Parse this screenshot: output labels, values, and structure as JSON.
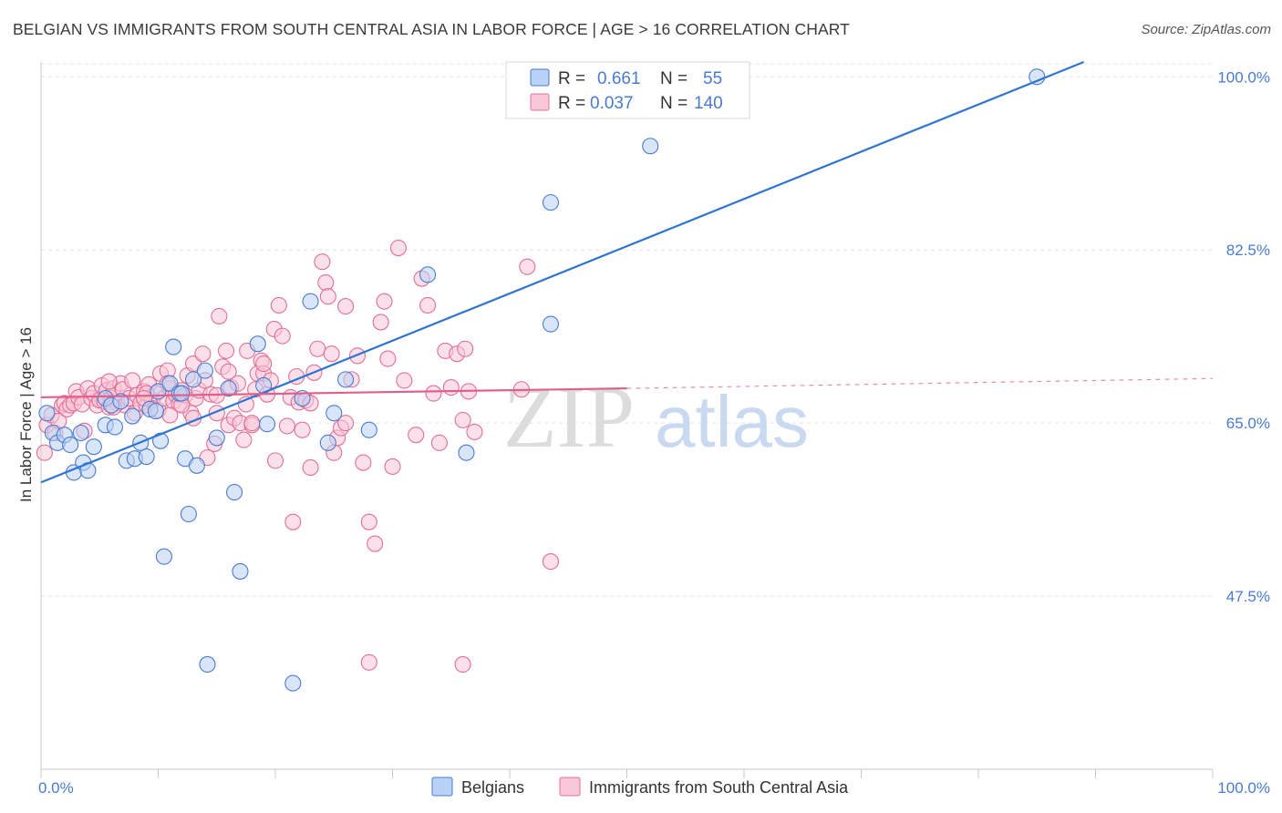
{
  "title": "BELGIAN VS IMMIGRANTS FROM SOUTH CENTRAL ASIA IN LABOR FORCE | AGE > 16 CORRELATION CHART",
  "source": "Source: ZipAtlas.com",
  "watermark": {
    "zip": "ZIP",
    "atlas": "atlas"
  },
  "colors": {
    "blue": "#4a7bd0",
    "blue_fill": "#b9d2f5",
    "blue_line": "#2f75d0",
    "pink": "#e07097",
    "pink_fill": "#f9c7d7",
    "pink_line": "#e0608a",
    "grid": "#e3e3e3",
    "axis": "#c8c8c8"
  },
  "legend_top": [
    {
      "r_label": "R =",
      "r_value": "0.661",
      "n_label": "N =",
      "n_value": "55"
    },
    {
      "r_label": "R =",
      "r_value": "0.037",
      "n_label": "N =",
      "n_value": "140"
    }
  ],
  "chart_data": {
    "type": "scatter",
    "xlabel": "",
    "ylabel": "In Labor Force | Age > 16",
    "xlim": [
      0,
      100
    ],
    "ylim": [
      30,
      101.5
    ],
    "x_tick_labels": [
      "0.0%",
      "100.0%"
    ],
    "y_ticks": [
      47.5,
      65.0,
      82.5,
      100.0
    ],
    "y_tick_labels": [
      "47.5%",
      "65.0%",
      "82.5%",
      "100.0%"
    ],
    "grid": true,
    "legend_position": "bottom-center",
    "series": [
      {
        "name": "Belgians",
        "color": "blue",
        "trend": {
          "x": [
            0,
            89
          ],
          "y": [
            59.0,
            101.5
          ]
        },
        "trend_dashed": null,
        "points": [
          [
            0.5,
            66.0
          ],
          [
            1.0,
            64.0
          ],
          [
            1.4,
            63.0
          ],
          [
            2.0,
            63.8
          ],
          [
            2.5,
            62.8
          ],
          [
            2.8,
            60.0
          ],
          [
            3.4,
            64.0
          ],
          [
            3.6,
            61.0
          ],
          [
            4.0,
            60.2
          ],
          [
            4.5,
            62.6
          ],
          [
            5.5,
            67.5
          ],
          [
            5.5,
            64.8
          ],
          [
            6.0,
            66.8
          ],
          [
            6.3,
            64.6
          ],
          [
            6.8,
            67.2
          ],
          [
            7.3,
            61.2
          ],
          [
            7.8,
            65.7
          ],
          [
            8.0,
            61.4
          ],
          [
            8.5,
            63.0
          ],
          [
            9.0,
            61.6
          ],
          [
            9.3,
            66.4
          ],
          [
            9.8,
            66.2
          ],
          [
            10.0,
            68.2
          ],
          [
            10.2,
            63.2
          ],
          [
            10.5,
            51.5
          ],
          [
            11.0,
            69.0
          ],
          [
            11.3,
            72.7
          ],
          [
            11.8,
            68.0
          ],
          [
            12.0,
            68.0
          ],
          [
            12.3,
            61.4
          ],
          [
            12.6,
            55.8
          ],
          [
            13.0,
            69.4
          ],
          [
            13.3,
            60.7
          ],
          [
            14.0,
            70.3
          ],
          [
            14.2,
            40.6
          ],
          [
            15.0,
            63.5
          ],
          [
            16.0,
            68.5
          ],
          [
            16.5,
            58.0
          ],
          [
            17.0,
            50.0
          ],
          [
            18.5,
            73.0
          ],
          [
            19.0,
            68.8
          ],
          [
            19.3,
            64.9
          ],
          [
            21.5,
            38.7
          ],
          [
            22.3,
            67.5
          ],
          [
            23.0,
            77.3
          ],
          [
            24.5,
            63.0
          ],
          [
            25.0,
            66.0
          ],
          [
            26.0,
            69.4
          ],
          [
            28.0,
            64.3
          ],
          [
            33.0,
            80.0
          ],
          [
            36.3,
            62.0
          ],
          [
            43.5,
            87.3
          ],
          [
            43.5,
            75.0
          ],
          [
            52.0,
            93.0
          ],
          [
            85.0,
            100.0
          ]
        ]
      },
      {
        "name": "Immigrants from South Central Asia",
        "color": "pink",
        "trend": {
          "x": [
            0,
            50
          ],
          "y": [
            67.6,
            68.5
          ]
        },
        "trend_dashed": {
          "x": [
            50,
            100
          ],
          "y": [
            68.5,
            69.5
          ]
        },
        "points": [
          [
            0.3,
            62.0
          ],
          [
            0.5,
            64.8
          ],
          [
            0.9,
            65.8
          ],
          [
            1.2,
            64.0
          ],
          [
            1.5,
            65.2
          ],
          [
            1.8,
            66.8
          ],
          [
            2.0,
            67.0
          ],
          [
            2.2,
            66.4
          ],
          [
            2.5,
            66.8
          ],
          [
            2.8,
            67.0
          ],
          [
            3.0,
            68.2
          ],
          [
            3.2,
            67.6
          ],
          [
            3.5,
            66.9
          ],
          [
            3.7,
            64.2
          ],
          [
            4.0,
            68.5
          ],
          [
            4.3,
            67.5
          ],
          [
            4.5,
            68.0
          ],
          [
            4.8,
            66.8
          ],
          [
            5.0,
            67.3
          ],
          [
            5.2,
            68.8
          ],
          [
            5.4,
            67.2
          ],
          [
            5.6,
            68.3
          ],
          [
            5.8,
            66.6
          ],
          [
            6.0,
            67.5
          ],
          [
            6.2,
            68.5
          ],
          [
            6.5,
            67.0
          ],
          [
            6.8,
            69.0
          ],
          [
            7.0,
            68.4
          ],
          [
            7.2,
            66.8
          ],
          [
            7.5,
            67.5
          ],
          [
            7.8,
            69.3
          ],
          [
            8.0,
            66.0
          ],
          [
            8.2,
            67.8
          ],
          [
            8.5,
            67.0
          ],
          [
            8.8,
            68.2
          ],
          [
            9.0,
            66.8
          ],
          [
            9.2,
            68.9
          ],
          [
            9.5,
            67.3
          ],
          [
            9.8,
            68.0
          ],
          [
            10.0,
            66.3
          ],
          [
            10.2,
            70.0
          ],
          [
            10.5,
            67.5
          ],
          [
            10.8,
            70.3
          ],
          [
            11.0,
            68.5
          ],
          [
            11.3,
            67.2
          ],
          [
            11.5,
            67.9
          ],
          [
            11.8,
            66.9
          ],
          [
            12.0,
            68.3
          ],
          [
            12.3,
            67.8
          ],
          [
            12.5,
            69.8
          ],
          [
            12.8,
            66.0
          ],
          [
            13.0,
            71.0
          ],
          [
            13.2,
            67.5
          ],
          [
            13.5,
            68.3
          ],
          [
            13.8,
            72.0
          ],
          [
            14.0,
            69.3
          ],
          [
            14.2,
            61.5
          ],
          [
            14.5,
            67.9
          ],
          [
            14.8,
            62.9
          ],
          [
            15.0,
            66.0
          ],
          [
            15.2,
            75.8
          ],
          [
            15.5,
            70.7
          ],
          [
            15.8,
            72.3
          ],
          [
            16.0,
            64.8
          ],
          [
            16.2,
            68.6
          ],
          [
            16.5,
            65.5
          ],
          [
            16.8,
            69.0
          ],
          [
            17.0,
            65.0
          ],
          [
            17.3,
            63.3
          ],
          [
            17.6,
            72.3
          ],
          [
            18.0,
            64.8
          ],
          [
            18.3,
            68.4
          ],
          [
            18.5,
            70.0
          ],
          [
            18.8,
            71.3
          ],
          [
            19.0,
            70.0
          ],
          [
            19.3,
            67.9
          ],
          [
            19.6,
            69.3
          ],
          [
            19.9,
            74.5
          ],
          [
            20.0,
            61.2
          ],
          [
            20.3,
            76.9
          ],
          [
            20.6,
            73.8
          ],
          [
            21.0,
            64.7
          ],
          [
            21.3,
            67.6
          ],
          [
            21.5,
            55.0
          ],
          [
            21.8,
            69.7
          ],
          [
            22.0,
            67.1
          ],
          [
            22.3,
            64.3
          ],
          [
            22.6,
            67.3
          ],
          [
            23.0,
            60.5
          ],
          [
            23.3,
            70.1
          ],
          [
            23.6,
            72.5
          ],
          [
            24.0,
            81.3
          ],
          [
            24.3,
            79.2
          ],
          [
            24.5,
            77.8
          ],
          [
            24.8,
            72.0
          ],
          [
            25.0,
            62.0
          ],
          [
            25.3,
            63.5
          ],
          [
            25.6,
            64.5
          ],
          [
            26.0,
            76.8
          ],
          [
            26.5,
            69.4
          ],
          [
            27.0,
            71.8
          ],
          [
            27.5,
            61.0
          ],
          [
            28.0,
            55.0
          ],
          [
            28.5,
            52.8
          ],
          [
            29.0,
            75.2
          ],
          [
            29.3,
            77.3
          ],
          [
            29.6,
            71.5
          ],
          [
            30.0,
            60.6
          ],
          [
            30.5,
            82.7
          ],
          [
            31.0,
            69.3
          ],
          [
            32.0,
            63.8
          ],
          [
            32.5,
            79.6
          ],
          [
            33.0,
            76.9
          ],
          [
            33.5,
            68.0
          ],
          [
            34.0,
            63.0
          ],
          [
            34.5,
            72.3
          ],
          [
            35.0,
            68.6
          ],
          [
            35.5,
            72.0
          ],
          [
            36.0,
            65.3
          ],
          [
            36.5,
            68.2
          ],
          [
            37.0,
            64.1
          ],
          [
            41.0,
            68.4
          ],
          [
            41.5,
            80.8
          ],
          [
            43.5,
            51.0
          ],
          [
            28.0,
            40.8
          ],
          [
            36.0,
            40.6
          ],
          [
            18.0,
            65.0
          ],
          [
            12.0,
            66.8
          ],
          [
            9.0,
            68.0
          ],
          [
            6.2,
            66.6
          ],
          [
            8.8,
            67.5
          ],
          [
            15.0,
            67.8
          ],
          [
            10.8,
            69.0
          ],
          [
            13.0,
            65.5
          ],
          [
            17.5,
            66.9
          ],
          [
            19.0,
            71.0
          ],
          [
            23.0,
            67.0
          ],
          [
            26.0,
            65.0
          ],
          [
            36.2,
            72.5
          ],
          [
            5.8,
            69.2
          ],
          [
            16.0,
            70.2
          ],
          [
            11.0,
            65.8
          ]
        ]
      }
    ]
  }
}
